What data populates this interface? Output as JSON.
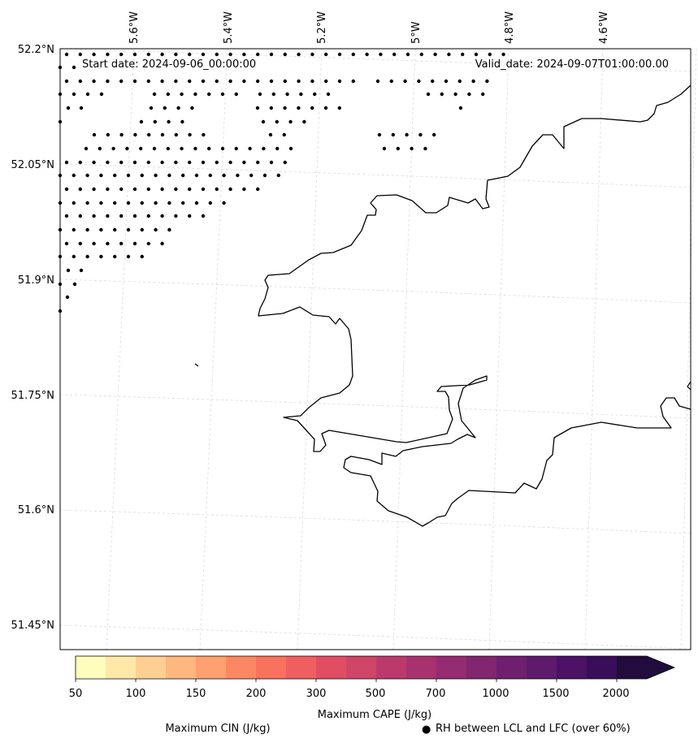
{
  "map": {
    "start_date": "Start date: 2024-09-06_00:00:00",
    "valid_date": "Valid_date: 2024-09-07T01:00:00.00",
    "lon_labels": [
      "5.6°W",
      "5.4°W",
      "5.2°W",
      "5°W",
      "4.8°W",
      "4.6°W"
    ],
    "lat_labels": [
      "52.2°N",
      "52.05°N",
      "51.9°N",
      "51.75°N",
      "51.6°N",
      "51.45°N"
    ],
    "coastline_color": "#000000",
    "gridline_color": "#d9d9d9",
    "dot_color": "#000000"
  },
  "colorbar": {
    "title": "Maximum CAPE (J/kg)",
    "tick_labels": [
      "50",
      "100",
      "150",
      "200",
      "300",
      "500",
      "700",
      "1000",
      "1500",
      "2000"
    ],
    "colors": [
      "#fefdbe",
      "#fde8a7",
      "#fecf92",
      "#feb77e",
      "#fea06f",
      "#fc8863",
      "#f8725e",
      "#ef5f5f",
      "#e14e63",
      "#d04468",
      "#bc3a6b",
      "#a8326f",
      "#952c71",
      "#82266f",
      "#701f6e",
      "#5e1a6b",
      "#4b1265",
      "#380d59",
      "#220c3d"
    ],
    "extend": "max"
  },
  "legend": {
    "cin_label": "Maximum CIN (J/kg)",
    "cin_color": "#ff0000",
    "rh_marker": "●",
    "rh_label": "RH between LCL and LFC (over 60%)"
  }
}
